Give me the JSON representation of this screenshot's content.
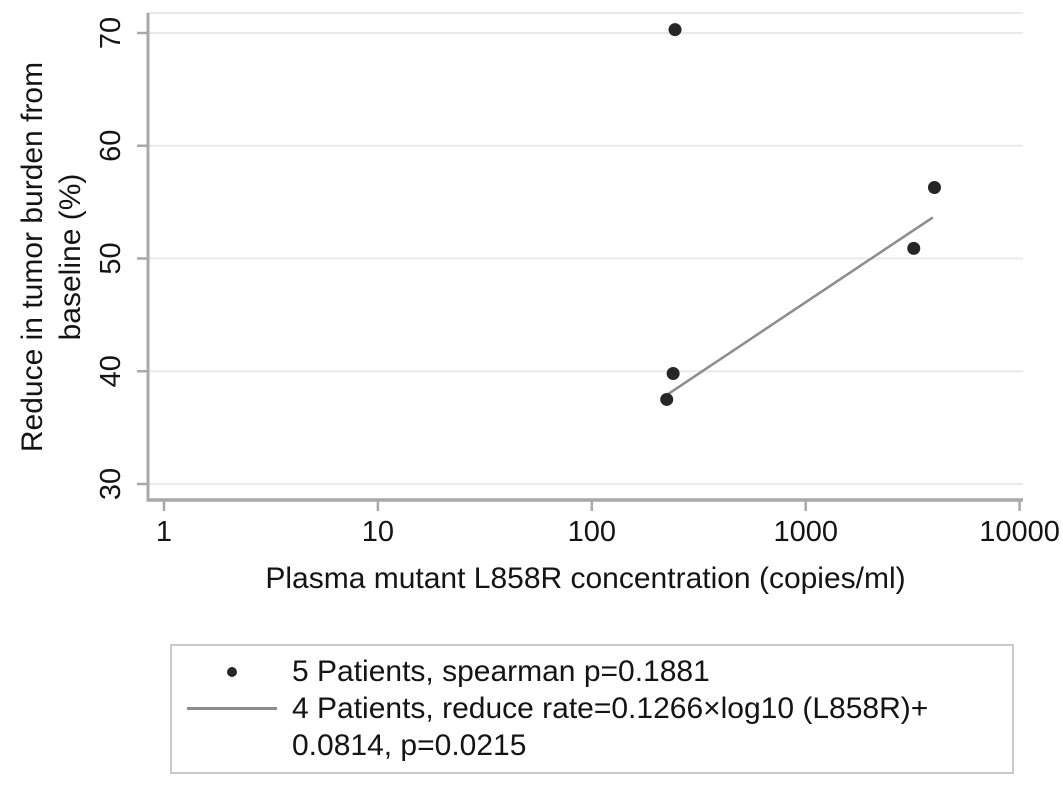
{
  "axes": {
    "x_label": "Plasma mutant L858R concentration (copies/ml)",
    "y_label_line1": "Reduce in tumor burden from",
    "y_label_line2": "baseline (%)"
  },
  "legend": {
    "position": "below-plot",
    "items": [
      {
        "marker": "dot",
        "label": "5 Patients, spearman p=0.1881"
      },
      {
        "marker": "line",
        "label": "4 Patients, reduce rate=0.1266×log10 (L858R)+",
        "label_line2": "0.0814, p=0.0215"
      }
    ]
  },
  "colors": {
    "background": "#ffffff",
    "axis": "#a8a8a8",
    "grid": "#e9e9e9",
    "point": "#262626",
    "fit_line": "#8c8c8c",
    "text": "#141414",
    "legend_border": "#c9c9c9"
  },
  "chart_data": {
    "type": "scatter",
    "title": "",
    "xlabel": "Plasma mutant L858R concentration (copies/ml)",
    "ylabel": "Reduce in tumor burden from baseline (%)",
    "x_scale": "log10",
    "x_ticks": [
      1,
      10,
      100,
      1000,
      10000
    ],
    "y_ticks": [
      30,
      40,
      50,
      60,
      70
    ],
    "xlim": [
      0.85,
      10400
    ],
    "ylim": [
      28.6,
      71.8
    ],
    "grid": "horizontal-only",
    "legend_position": "bottom",
    "series": [
      {
        "name": "5 Patients, spearman p=0.1881",
        "type": "scatter",
        "marker": "filled-circle",
        "points": [
          {
            "x": 245,
            "y": 70.3
          },
          {
            "x": 4000,
            "y": 56.3
          },
          {
            "x": 3200,
            "y": 50.9
          },
          {
            "x": 240,
            "y": 39.8
          },
          {
            "x": 224,
            "y": 37.5
          }
        ]
      },
      {
        "name": "4 Patients, reduce rate=0.1266×log10 (L858R)+ 0.0814, p=0.0215",
        "type": "fit-line",
        "fit": {
          "slope_per_log10_pct": 12.66,
          "intercept_pct": 8.14,
          "x_start": 227,
          "x_end": 3930,
          "spearman_p": "0.0215"
        }
      }
    ]
  }
}
